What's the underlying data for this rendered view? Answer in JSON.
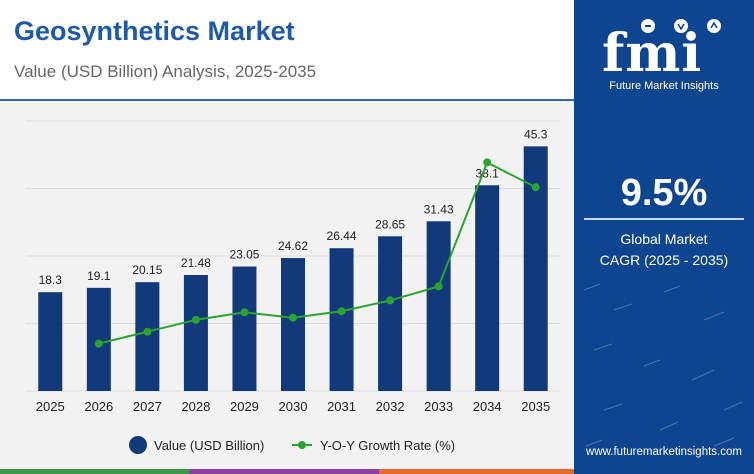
{
  "header": {
    "title": "Geosynthetics Market",
    "subtitle": "Value (USD Billion) Analysis, 2025-2035"
  },
  "sidebar": {
    "logo_text": "fmi",
    "tagline": "Future Market Insights",
    "cagr_value": "9.5%",
    "cagr_label_line1": "Global Market",
    "cagr_label_line2": "CAGR (2025 - 2035)",
    "website": "www.futuremarketinsights.com"
  },
  "colors": {
    "bar": "#12397a",
    "line": "#2aa42f",
    "title": "#1e5aa8",
    "sidebar": "#0d4590"
  },
  "chart_data": {
    "type": "bar",
    "categories": [
      "2025",
      "2026",
      "2027",
      "2028",
      "2029",
      "2030",
      "2031",
      "2032",
      "2033",
      "2034",
      "2035"
    ],
    "series": [
      {
        "name": "Value (USD Billion)",
        "type": "bar",
        "values": [
          18.3,
          19.1,
          20.15,
          21.48,
          23.05,
          24.62,
          26.44,
          28.65,
          31.43,
          38.1,
          45.3
        ],
        "labels": [
          "18.3",
          "19.1",
          "20.15",
          "21.48",
          "23.05",
          "24.62",
          "26.44",
          "28.65",
          "31.43",
          "38.1",
          "45.3"
        ]
      },
      {
        "name": "Y-O-Y Growth Rate (%)",
        "type": "line",
        "values": [
          null,
          4.4,
          5.5,
          6.6,
          7.3,
          6.8,
          7.4,
          8.4,
          9.7,
          21.2,
          18.9
        ]
      }
    ],
    "ylim": [
      0,
      50
    ],
    "legend": "bottom-center",
    "grid": true
  }
}
